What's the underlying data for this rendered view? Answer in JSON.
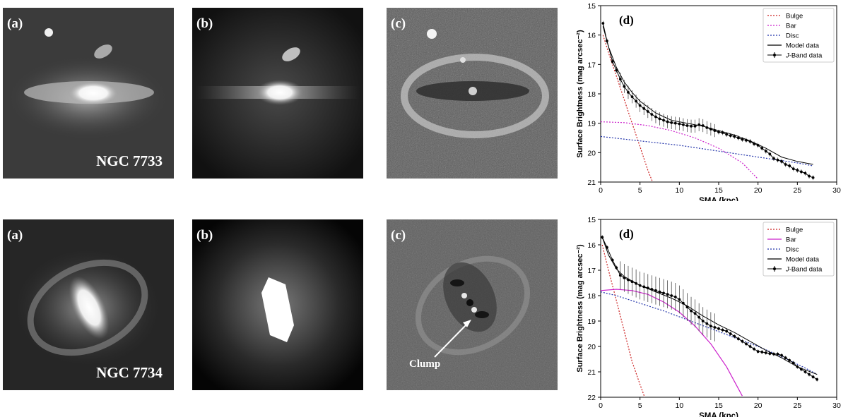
{
  "panels": {
    "a": "(a)",
    "b": "(b)",
    "c": "(c)",
    "d": "(d)"
  },
  "galaxies": [
    "NGC 7733",
    "NGC 7734"
  ],
  "annotation": "Clump",
  "chart_data": [
    {
      "type": "line",
      "panel_label": "(d)",
      "xlabel": "SMA (kpc)",
      "ylabel": "Surface Brightness (mag arcsec⁻²)",
      "xlim": [
        0,
        30
      ],
      "ylim": [
        21,
        15
      ],
      "y_inverted": true,
      "xticks": [
        0,
        5,
        10,
        15,
        20,
        25,
        30
      ],
      "yticks": [
        15,
        16,
        17,
        18,
        19,
        20,
        21
      ],
      "legend_position": "top-right",
      "legend": [
        "Bulge",
        "Bar",
        "Disc",
        "Model data",
        "J-Band data"
      ],
      "series": [
        {
          "name": "Bulge",
          "style": "dotted",
          "color": "#cc2222",
          "x": [
            0.3,
            1,
            2,
            3,
            4,
            5,
            6,
            6.6
          ],
          "y": [
            16.0,
            16.6,
            17.4,
            18.2,
            19.0,
            19.8,
            20.6,
            21.0
          ]
        },
        {
          "name": "Bar",
          "style": "dotted",
          "color": "#cc22cc",
          "x": [
            0,
            3,
            6,
            9,
            12,
            15,
            18,
            20
          ],
          "y": [
            18.95,
            18.98,
            19.08,
            19.25,
            19.5,
            19.85,
            20.35,
            20.9
          ]
        },
        {
          "name": "Disc",
          "style": "dotted",
          "color": "#2233aa",
          "x": [
            0,
            5,
            10,
            15,
            20,
            25,
            27
          ],
          "y": [
            19.45,
            19.6,
            19.75,
            19.95,
            20.15,
            20.35,
            20.45
          ]
        },
        {
          "name": "Model data",
          "style": "solid",
          "color": "#000000",
          "x": [
            0.3,
            1,
            2,
            3,
            4,
            5,
            7,
            9,
            11,
            13,
            15,
            17,
            19,
            21,
            23,
            25,
            27
          ],
          "y": [
            15.7,
            16.4,
            17.1,
            17.6,
            17.95,
            18.25,
            18.65,
            18.9,
            19.0,
            19.1,
            19.25,
            19.4,
            19.6,
            19.85,
            20.15,
            20.3,
            20.4
          ]
        },
        {
          "name": "J-Band data",
          "style": "markers",
          "color": "#000000",
          "x": [
            0.3,
            0.8,
            1.5,
            2,
            2.5,
            3,
            3.5,
            4,
            4.5,
            5,
            5.5,
            6,
            6.5,
            7,
            7.5,
            8,
            8.5,
            9,
            9.5,
            10,
            10.5,
            11,
            11.5,
            12,
            12.5,
            13,
            13.5,
            14,
            14.5,
            15,
            15.5,
            16,
            16.5,
            17,
            17.5,
            18,
            18.5,
            19,
            19.5,
            20,
            20.5,
            21,
            21.5,
            22,
            22.5,
            23,
            23.5,
            24,
            24.5,
            25,
            25.5,
            26,
            26.5,
            27
          ],
          "y": [
            15.6,
            16.2,
            16.9,
            17.2,
            17.5,
            17.75,
            17.95,
            18.1,
            18.25,
            18.4,
            18.5,
            18.6,
            18.7,
            18.78,
            18.85,
            18.9,
            18.95,
            18.98,
            19.0,
            19.02,
            19.05,
            19.08,
            19.1,
            19.1,
            19.05,
            19.08,
            19.15,
            19.2,
            19.25,
            19.3,
            19.32,
            19.38,
            19.42,
            19.45,
            19.5,
            19.55,
            19.58,
            19.62,
            19.7,
            19.75,
            19.85,
            19.95,
            20.05,
            20.2,
            20.25,
            20.3,
            20.4,
            20.45,
            20.55,
            20.6,
            20.65,
            20.7,
            20.8,
            20.85
          ]
        }
      ]
    },
    {
      "type": "line",
      "panel_label": "(d)",
      "xlabel": "SMA (kpc)",
      "ylabel": "Surface Brightness (mag arcsec⁻²)",
      "xlim": [
        0,
        30
      ],
      "ylim": [
        22,
        15
      ],
      "y_inverted": true,
      "xticks": [
        0,
        5,
        10,
        15,
        20,
        25,
        30
      ],
      "yticks": [
        15,
        16,
        17,
        18,
        19,
        20,
        21,
        22
      ],
      "legend_position": "top-right",
      "legend": [
        "Bulge",
        "Bar",
        "Disc",
        "Model data",
        "J-Band data"
      ],
      "series": [
        {
          "name": "Bulge",
          "style": "dotted",
          "color": "#cc2222",
          "x": [
            0.2,
            1,
            2,
            3,
            4,
            5,
            5.6
          ],
          "y": [
            16.0,
            17.0,
            18.2,
            19.4,
            20.6,
            21.5,
            22.0
          ]
        },
        {
          "name": "Bar",
          "style": "solid",
          "color": "#cc22cc",
          "x": [
            0,
            2,
            4,
            6,
            8,
            10,
            12,
            14,
            16,
            18
          ],
          "y": [
            17.8,
            17.75,
            17.8,
            17.95,
            18.25,
            18.65,
            19.2,
            19.9,
            20.8,
            21.95
          ]
        },
        {
          "name": "Disc",
          "style": "dotted",
          "color": "#2233aa",
          "x": [
            0,
            2,
            5,
            8,
            11,
            14,
            17,
            20,
            23,
            26,
            27.5
          ],
          "y": [
            17.85,
            18.0,
            18.3,
            18.6,
            18.95,
            19.3,
            19.65,
            20.0,
            20.4,
            20.85,
            21.1
          ]
        },
        {
          "name": "Model data",
          "style": "solid",
          "color": "#000000",
          "x": [
            0.2,
            1,
            2,
            3,
            5,
            7,
            9,
            11,
            13,
            15,
            17,
            19,
            21,
            23,
            25,
            27.5
          ],
          "y": [
            15.7,
            16.4,
            16.95,
            17.25,
            17.6,
            17.85,
            18.1,
            18.4,
            18.8,
            19.15,
            19.45,
            19.8,
            20.15,
            20.45,
            20.8,
            21.1
          ]
        },
        {
          "name": "J-Band data",
          "style": "markers",
          "color": "#000000",
          "x": [
            0.2,
            0.8,
            1.5,
            2,
            2.5,
            3,
            3.5,
            4,
            4.5,
            5,
            5.5,
            6,
            6.5,
            7,
            7.5,
            8,
            8.5,
            9,
            9.5,
            10,
            10.5,
            11,
            11.5,
            12,
            12.5,
            13,
            13.5,
            14,
            14.5,
            15,
            15.5,
            16,
            16.5,
            17,
            17.5,
            18,
            18.5,
            19,
            19.5,
            20,
            20.5,
            21,
            21.5,
            22,
            22.5,
            23,
            23.5,
            24,
            24.5,
            25,
            25.5,
            26,
            26.5,
            27,
            27.5
          ],
          "y": [
            15.7,
            16.1,
            16.6,
            16.9,
            17.2,
            17.3,
            17.38,
            17.45,
            17.52,
            17.6,
            17.65,
            17.7,
            17.75,
            17.8,
            17.85,
            17.9,
            17.95,
            18.0,
            18.05,
            18.15,
            18.3,
            18.45,
            18.6,
            18.7,
            18.85,
            19.0,
            19.1,
            19.2,
            19.25,
            19.3,
            19.35,
            19.4,
            19.5,
            19.6,
            19.7,
            19.8,
            19.9,
            20.0,
            20.1,
            20.2,
            20.22,
            20.25,
            20.28,
            20.3,
            20.3,
            20.35,
            20.45,
            20.55,
            20.65,
            20.8,
            20.9,
            21.0,
            21.1,
            21.2,
            21.3
          ]
        }
      ]
    }
  ]
}
